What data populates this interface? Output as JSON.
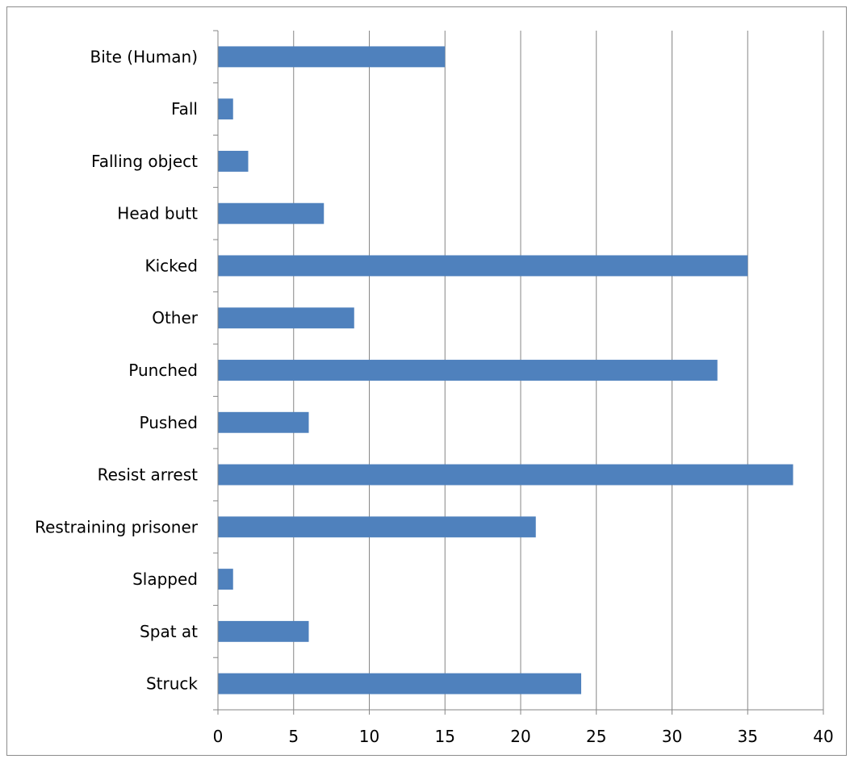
{
  "chart_data": {
    "type": "bar",
    "orientation": "horizontal",
    "categories": [
      "Bite (Human)",
      "Fall",
      "Falling object",
      "Head butt",
      "Kicked",
      "Other",
      "Punched",
      "Pushed",
      "Resist arrest",
      "Restraining prisoner",
      "Slapped",
      "Spat at",
      "Struck"
    ],
    "values": [
      15,
      1,
      2,
      7,
      35,
      9,
      33,
      6,
      38,
      21,
      1,
      6,
      24
    ],
    "title": "",
    "xlabel": "",
    "ylabel": "",
    "xlim": [
      0,
      40
    ],
    "x_ticks": [
      0,
      5,
      10,
      15,
      20,
      25,
      30,
      35,
      40
    ],
    "grid": "vertical",
    "legend": "none",
    "bar_color": "#4f81bd",
    "grid_color": "#868686"
  }
}
